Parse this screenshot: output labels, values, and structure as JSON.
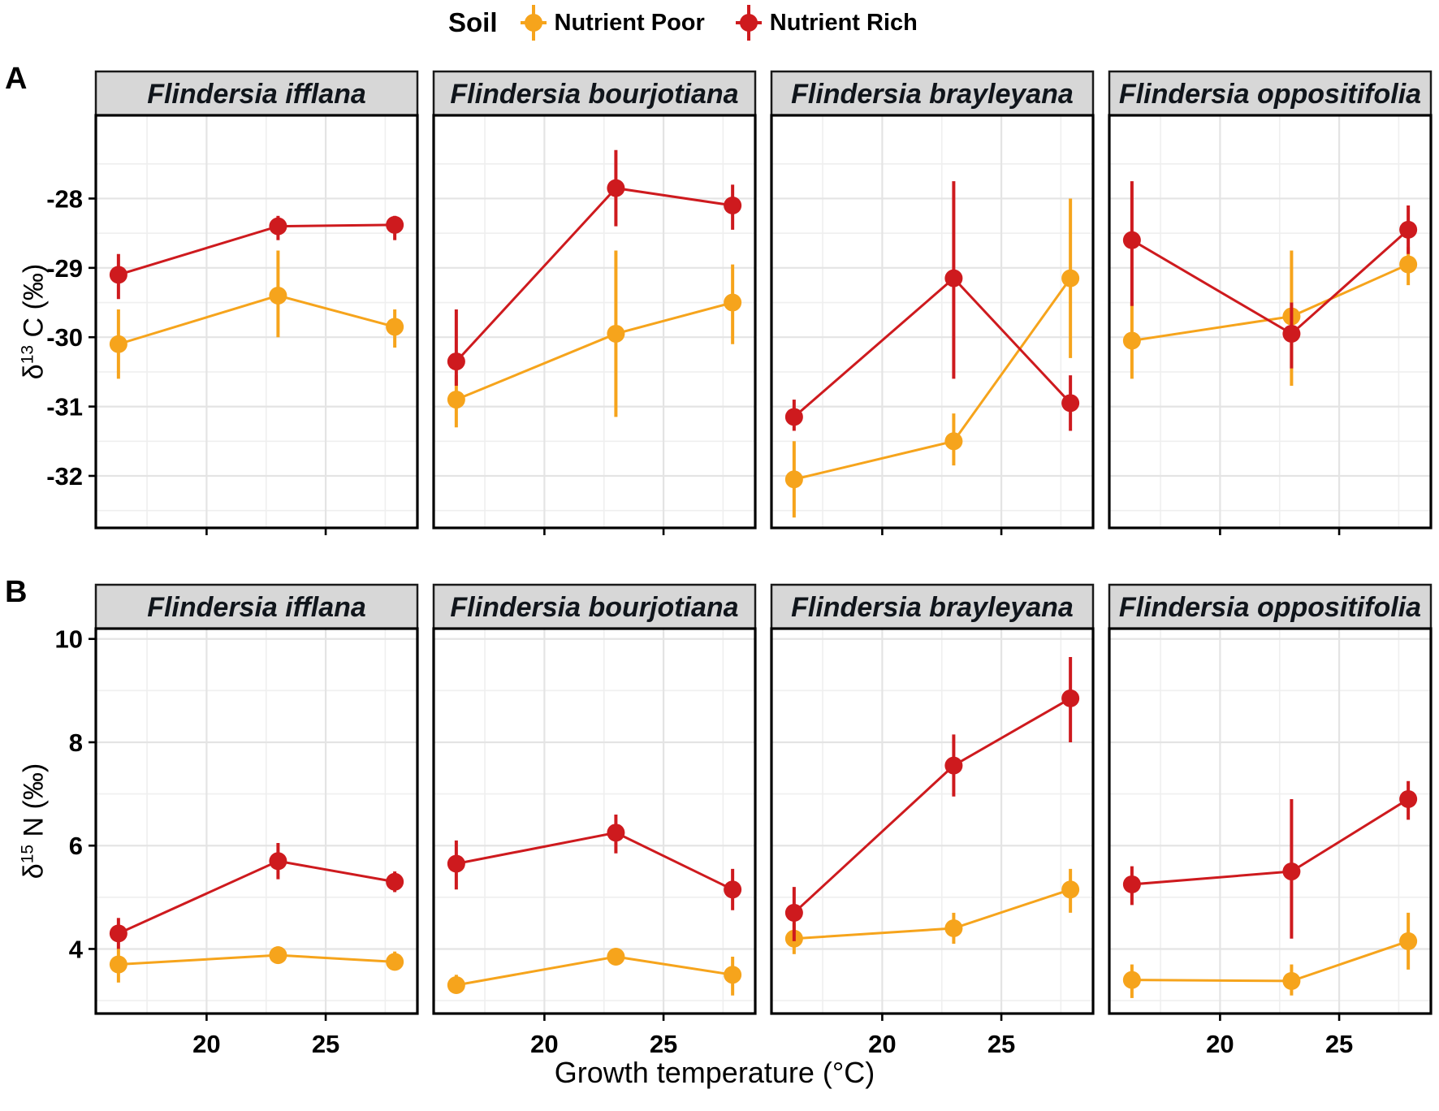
{
  "figure": {
    "panel_labels": [
      "A",
      "B"
    ],
    "legend": {
      "title": "Soil",
      "items": [
        {
          "label": "Nutrient Poor",
          "color_key": "poor"
        },
        {
          "label": "Nutrient Rich",
          "color_key": "rich"
        }
      ]
    },
    "xlabel": "Growth temperature (°C)"
  },
  "colors": {
    "poor": "#F6A41C",
    "rich": "#CE1A1E",
    "strip_bg": "#D7D7D7",
    "strip_border": "#1A1A1A",
    "panel_border": "#000000",
    "grid_major": "#E4E4E4",
    "grid_minor": "#EFEFEF",
    "tick_text": "#000000",
    "title_text": "#10151B"
  },
  "chart_data": [
    {
      "id": "A",
      "type": "line",
      "title": "",
      "ylabel": {
        "prefix": "δ",
        "sup": "13",
        "rest": " C (‰)"
      },
      "xlabel": "Growth temperature (°C)",
      "legend_position": "top",
      "grid": true,
      "x": [
        16.3,
        23.0,
        27.9
      ],
      "xticks": [
        20,
        25
      ],
      "xlim": [
        15.35,
        28.85
      ],
      "yticks": [
        -28,
        -29,
        -30,
        -31,
        -32
      ],
      "ylim": [
        -32.75,
        -26.8
      ],
      "facets": [
        {
          "title": "Flindersia ifflana",
          "series": [
            {
              "name": "Nutrient Poor",
              "color_key": "poor",
              "y": [
                -30.1,
                -29.4,
                -29.85
              ],
              "err_lo": [
                -30.6,
                -30.0,
                -30.15
              ],
              "err_hi": [
                -29.6,
                -28.75,
                -29.6
              ]
            },
            {
              "name": "Nutrient Rich",
              "color_key": "rich",
              "y": [
                -29.1,
                -28.4,
                -28.38
              ],
              "err_lo": [
                -29.45,
                -28.6,
                -28.6
              ],
              "err_hi": [
                -28.8,
                -28.25,
                -28.25
              ]
            }
          ]
        },
        {
          "title": "Flindersia bourjotiana",
          "series": [
            {
              "name": "Nutrient Poor",
              "color_key": "poor",
              "y": [
                -30.9,
                -29.95,
                -29.5
              ],
              "err_lo": [
                -31.3,
                -31.15,
                -30.1
              ],
              "err_hi": [
                -30.55,
                -28.75,
                -28.95
              ]
            },
            {
              "name": "Nutrient Rich",
              "color_key": "rich",
              "y": [
                -30.35,
                -27.85,
                -28.1
              ],
              "err_lo": [
                -30.7,
                -28.4,
                -28.45
              ],
              "err_hi": [
                -29.6,
                -27.3,
                -27.8
              ]
            }
          ]
        },
        {
          "title": "Flindersia brayleyana",
          "series": [
            {
              "name": "Nutrient Poor",
              "color_key": "poor",
              "y": [
                -32.05,
                -31.5,
                -29.15
              ],
              "err_lo": [
                -32.6,
                -31.85,
                -30.3
              ],
              "err_hi": [
                -31.5,
                -31.1,
                -28.0
              ]
            },
            {
              "name": "Nutrient Rich",
              "color_key": "rich",
              "y": [
                -31.15,
                -29.15,
                -30.95
              ],
              "err_lo": [
                -31.35,
                -30.6,
                -31.35
              ],
              "err_hi": [
                -30.9,
                -27.75,
                -30.55
              ]
            }
          ]
        },
        {
          "title": "Flindersia oppositifolia",
          "series": [
            {
              "name": "Nutrient Poor",
              "color_key": "poor",
              "y": [
                -30.05,
                -29.7,
                -28.95
              ],
              "err_lo": [
                -30.6,
                -30.7,
                -29.25
              ],
              "err_hi": [
                -29.5,
                -28.75,
                -28.7
              ]
            },
            {
              "name": "Nutrient Rich",
              "color_key": "rich",
              "y": [
                -28.6,
                -29.95,
                -28.45
              ],
              "err_lo": [
                -29.55,
                -30.45,
                -28.8
              ],
              "err_hi": [
                -27.75,
                -29.5,
                -28.1
              ]
            }
          ]
        }
      ]
    },
    {
      "id": "B",
      "type": "line",
      "title": "",
      "ylabel": {
        "prefix": "δ",
        "sup": "15",
        "rest": " N (‰)"
      },
      "xlabel": "Growth temperature (°C)",
      "legend_position": "top",
      "grid": true,
      "x": [
        16.3,
        23.0,
        27.9
      ],
      "xticks": [
        20,
        25
      ],
      "xlim": [
        15.35,
        28.85
      ],
      "yticks": [
        10,
        8,
        6,
        4
      ],
      "ylim": [
        2.75,
        10.2
      ],
      "facets": [
        {
          "title": "Flindersia ifflana",
          "series": [
            {
              "name": "Nutrient Poor",
              "color_key": "poor",
              "y": [
                3.7,
                3.88,
                3.75
              ],
              "err_lo": [
                3.35,
                3.72,
                3.6
              ],
              "err_hi": [
                4.0,
                4.05,
                3.95
              ]
            },
            {
              "name": "Nutrient Rich",
              "color_key": "rich",
              "y": [
                4.3,
                5.7,
                5.3
              ],
              "err_lo": [
                4.0,
                5.35,
                5.1
              ],
              "err_hi": [
                4.6,
                6.05,
                5.5
              ]
            }
          ]
        },
        {
          "title": "Flindersia bourjotiana",
          "series": [
            {
              "name": "Nutrient Poor",
              "color_key": "poor",
              "y": [
                3.3,
                3.85,
                3.5
              ],
              "err_lo": [
                3.15,
                3.7,
                3.1
              ],
              "err_hi": [
                3.5,
                4.0,
                3.85
              ]
            },
            {
              "name": "Nutrient Rich",
              "color_key": "rich",
              "y": [
                5.65,
                6.25,
                5.15
              ],
              "err_lo": [
                5.15,
                5.85,
                4.75
              ],
              "err_hi": [
                6.1,
                6.6,
                5.55
              ]
            }
          ]
        },
        {
          "title": "Flindersia brayleyana",
          "series": [
            {
              "name": "Nutrient Poor",
              "color_key": "poor",
              "y": [
                4.2,
                4.4,
                5.15
              ],
              "err_lo": [
                3.9,
                4.1,
                4.7
              ],
              "err_hi": [
                4.5,
                4.7,
                5.55
              ]
            },
            {
              "name": "Nutrient Rich",
              "color_key": "rich",
              "y": [
                4.7,
                7.55,
                8.85
              ],
              "err_lo": [
                4.15,
                6.95,
                8.0
              ],
              "err_hi": [
                5.2,
                8.15,
                9.65
              ]
            }
          ]
        },
        {
          "title": "Flindersia oppositifolia",
          "series": [
            {
              "name": "Nutrient Poor",
              "color_key": "poor",
              "y": [
                3.4,
                3.38,
                4.15
              ],
              "err_lo": [
                3.05,
                3.1,
                3.6
              ],
              "err_hi": [
                3.7,
                3.7,
                4.7
              ]
            },
            {
              "name": "Nutrient Rich",
              "color_key": "rich",
              "y": [
                5.25,
                5.5,
                6.9
              ],
              "err_lo": [
                4.85,
                4.2,
                6.5
              ],
              "err_hi": [
                5.6,
                6.9,
                7.25
              ]
            }
          ]
        }
      ]
    }
  ]
}
